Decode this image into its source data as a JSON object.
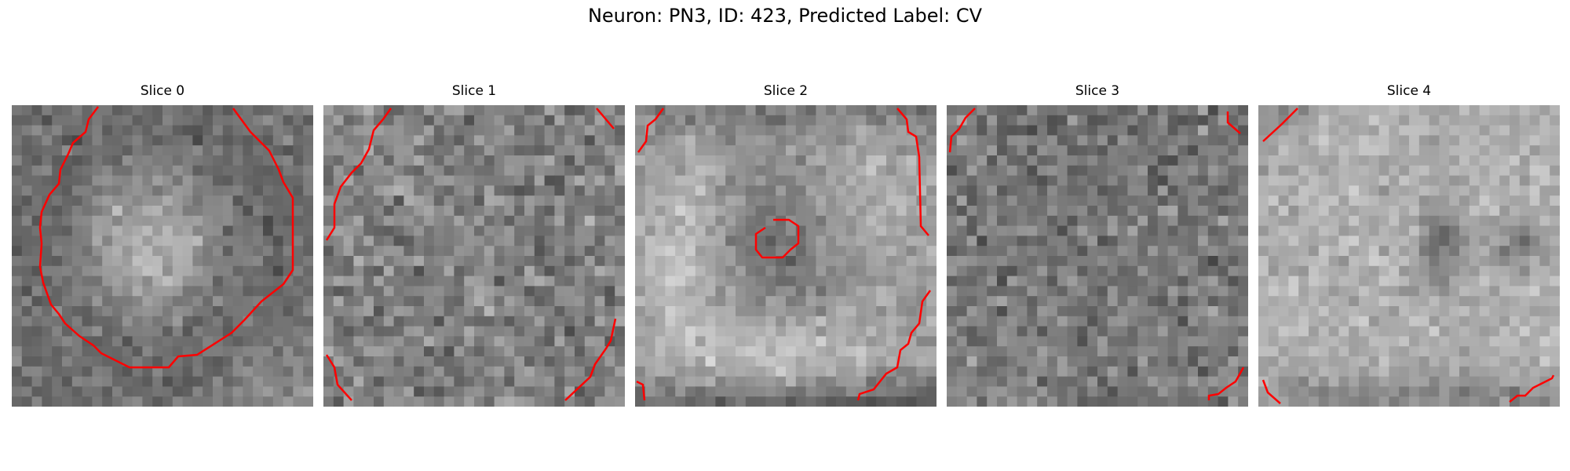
{
  "figure": {
    "title": "Neuron: PN3, ID: 423, Predicted Label: CV"
  },
  "panels": [
    {
      "title": "Slice 0"
    },
    {
      "title": "Slice 1"
    },
    {
      "title": "Slice 2"
    },
    {
      "title": "Slice 3"
    },
    {
      "title": "Slice 4"
    }
  ],
  "colors": {
    "contour": "#ff0000",
    "background": "#ffffff",
    "text": "#000000"
  },
  "image": {
    "colormap": "grayscale",
    "grid_cells": 30
  }
}
